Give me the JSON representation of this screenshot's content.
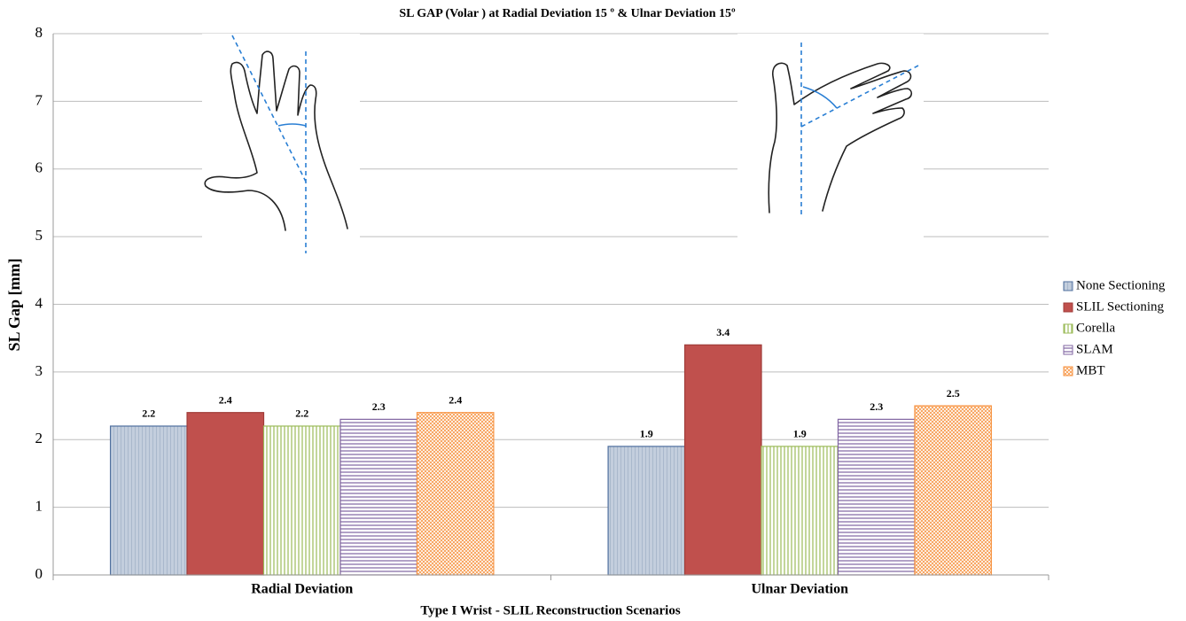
{
  "chart_data": {
    "type": "bar",
    "title": "SL GAP (Volar ) at Radial Deviation 15 º & Ulnar Deviation  15º",
    "x_label": "Type I Wrist - SLIL Reconstruction Scenarios",
    "y_label": "SL Gap [mm]",
    "categories": [
      "Radial Deviation",
      "Ulnar Deviation"
    ],
    "series": [
      {
        "name": "None Sectioning",
        "color": "#4f6f9e",
        "values": [
          2.2,
          1.9
        ]
      },
      {
        "name": "SLIL Sectioning",
        "color": "#c0504d",
        "values": [
          2.4,
          3.4
        ]
      },
      {
        "name": "Corella",
        "color": "#9bbb59",
        "values": [
          2.2,
          1.9
        ]
      },
      {
        "name": "SLAM",
        "color": "#8064a2",
        "values": [
          2.3,
          2.3
        ]
      },
      {
        "name": "MBT",
        "color": "#f79646",
        "values": [
          2.4,
          2.5
        ]
      }
    ],
    "ylim": [
      0,
      8
    ],
    "yticks": [
      0,
      1,
      2,
      3,
      4,
      5,
      6,
      7,
      8
    ],
    "grid": true,
    "legend": "right"
  }
}
